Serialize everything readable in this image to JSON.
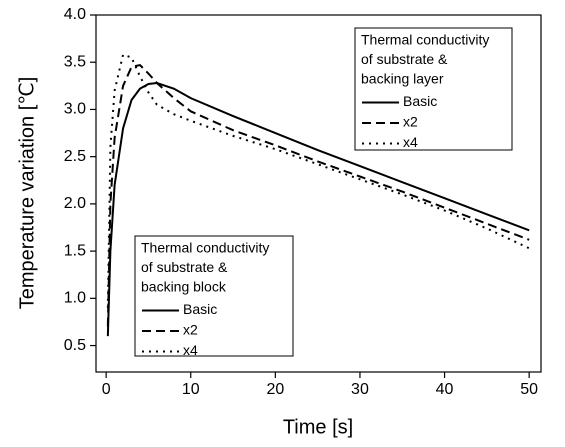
{
  "chart_data": {
    "type": "line",
    "xlabel": "Time [s]",
    "ylabel": "Temperature variation [℃]",
    "x": [
      0.2,
      0.5,
      1,
      2,
      3,
      4,
      5,
      6,
      8,
      10,
      15,
      20,
      25,
      30,
      35,
      40,
      45,
      50
    ],
    "series": [
      {
        "name": "Basic",
        "color": "#000000",
        "dash": "solid",
        "values": [
          0.6,
          1.5,
          2.2,
          2.8,
          3.1,
          3.22,
          3.27,
          3.28,
          3.22,
          3.12,
          2.93,
          2.75,
          2.57,
          2.4,
          2.23,
          2.06,
          1.89,
          1.72
        ]
      },
      {
        "name": "x2",
        "color": "#000000",
        "dash": "dashed",
        "values": [
          0.7,
          2.0,
          2.7,
          3.25,
          3.45,
          3.47,
          3.38,
          3.28,
          3.12,
          2.98,
          2.78,
          2.62,
          2.45,
          2.29,
          2.13,
          1.96,
          1.79,
          1.62
        ]
      },
      {
        "name": "x4",
        "color": "#000000",
        "dash": "dotted",
        "values": [
          0.9,
          2.6,
          3.2,
          3.58,
          3.55,
          3.35,
          3.18,
          3.05,
          2.95,
          2.88,
          2.72,
          2.58,
          2.42,
          2.26,
          2.1,
          1.93,
          1.74,
          1.53
        ]
      }
    ],
    "xlim": [
      -1.2,
      51.4
    ],
    "xticks": [
      0,
      10,
      20,
      30,
      40,
      50
    ],
    "ylim": [
      0.22,
      4.0
    ],
    "yticks": [
      {
        "value": 0.5,
        "label": "0.5"
      },
      {
        "value": 1,
        "label": "1.0"
      },
      {
        "value": 1.5,
        "label": "1.5"
      },
      {
        "value": 2,
        "label": "2.0"
      },
      {
        "value": 2.5,
        "label": "2.5"
      },
      {
        "value": 3,
        "label": "3.0"
      },
      {
        "value": 3.5,
        "label": "3.5"
      },
      {
        "value": 4,
        "label": "4.0"
      }
    ],
    "grid": false,
    "legend_title": [
      "Thermal conductivity",
      "of substrate &",
      "backing layer"
    ],
    "legend_position": "upper right",
    "second_legend": {
      "title": [
        "Thermal conductivity",
        "of substrate &",
        "backing block"
      ],
      "entries": [
        "Basic",
        "x2",
        "x4"
      ],
      "position": "lower left"
    }
  }
}
